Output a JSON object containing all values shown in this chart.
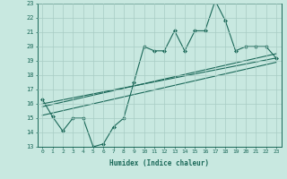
{
  "xlabel": "Humidex (Indice chaleur)",
  "ylabel": "",
  "xlim": [
    -0.5,
    23.5
  ],
  "ylim": [
    13,
    23
  ],
  "xticks": [
    0,
    1,
    2,
    3,
    4,
    5,
    6,
    7,
    8,
    9,
    10,
    11,
    12,
    13,
    14,
    15,
    16,
    17,
    18,
    19,
    20,
    21,
    22,
    23
  ],
  "yticks": [
    13,
    14,
    15,
    16,
    17,
    18,
    19,
    20,
    21,
    22,
    23
  ],
  "bg_color": "#c8e8e0",
  "grid_color": "#a8ccc4",
  "line_color": "#1a6858",
  "line1_x": [
    0,
    1,
    2,
    3,
    4,
    5,
    6,
    7,
    8,
    9,
    10,
    11,
    12,
    13,
    14,
    15,
    16,
    17,
    18,
    19,
    20,
    21,
    22,
    23
  ],
  "line1_y": [
    16.3,
    15.1,
    14.1,
    15.0,
    15.0,
    13.0,
    13.2,
    14.4,
    15.0,
    17.5,
    20.0,
    19.7,
    19.7,
    21.1,
    19.7,
    21.1,
    21.1,
    23.2,
    21.8,
    19.7,
    20.0,
    20.0,
    20.0,
    19.2
  ],
  "line2_x": [
    0,
    23
  ],
  "line2_y": [
    16.0,
    19.2
  ],
  "line3_x": [
    0,
    23
  ],
  "line3_y": [
    15.2,
    18.9
  ],
  "line4_x": [
    0,
    23
  ],
  "line4_y": [
    15.8,
    19.5
  ]
}
